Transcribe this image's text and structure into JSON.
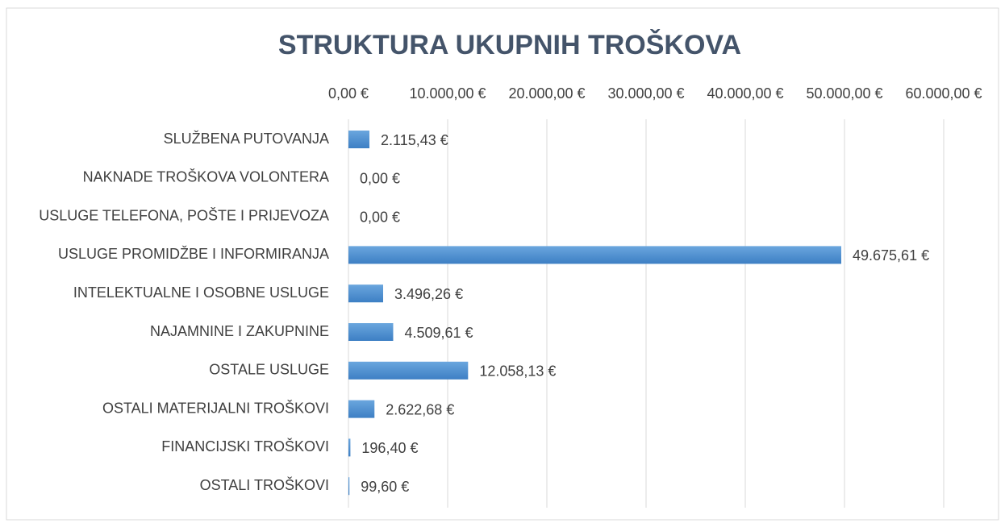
{
  "chart_data": {
    "type": "barh",
    "title": "STRUKTURA UKUPNIH TROŠKOVA",
    "categories": [
      "SLUŽBENA PUTOVANJA",
      "NAKNADE TROŠKOVA VOLONTERA",
      "USLUGE TELEFONA, POŠTE I PRIJEVOZA",
      "USLUGE PROMIDŽBE I INFORMIRANJA",
      "INTELEKTUALNE I OSOBNE USLUGE",
      "NAJAMNINE I ZAKUPNINE",
      "OSTALE USLUGE",
      "OSTALI MATERIJALNI TROŠKOVI",
      "FINANCIJSKI TROŠKOVI",
      "OSTALI TROŠKOVI"
    ],
    "values": [
      2115.43,
      0,
      0,
      49675.61,
      3496.26,
      4509.61,
      12058.13,
      2622.68,
      196.4,
      99.6
    ],
    "value_labels": [
      "2.115,43 €",
      "0,00 €",
      "0,00 €",
      "49.675,61 €",
      "3.496,26 €",
      "4.509,61 €",
      "12.058,13 €",
      "2.622,68 €",
      "196,40 €",
      "99,60 €"
    ],
    "color": "#4a8fd4",
    "xlim": [
      0,
      60000
    ],
    "xticks": [
      {
        "value": 0,
        "label": "0,00 €"
      },
      {
        "value": 10000,
        "label": "10.000,00 €"
      },
      {
        "value": 20000,
        "label": "20.000,00 €"
      },
      {
        "value": 30000,
        "label": "30.000,00 €"
      },
      {
        "value": 40000,
        "label": "40.000,00 €"
      },
      {
        "value": 50000,
        "label": "50.000,00 €"
      },
      {
        "value": 60000,
        "label": "60.000,00 €"
      }
    ],
    "grid": true
  }
}
